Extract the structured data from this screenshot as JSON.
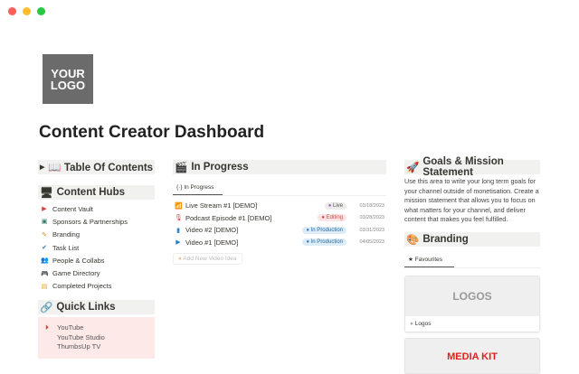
{
  "window": {
    "controls": [
      "#fe5f57",
      "#febc2e",
      "#28c840"
    ]
  },
  "logo": {
    "text": "YOUR LOGO"
  },
  "title": "Content Creator Dashboard",
  "toc": {
    "title": "📖 Table Of Contents"
  },
  "hubs": {
    "title": "Content Hubs",
    "items": [
      {
        "label": "Content Vault",
        "icon": "▶",
        "color": "#e03e3e"
      },
      {
        "label": "Sponsors & Partnerships",
        "icon": "▣",
        "color": "#2e7d6a"
      },
      {
        "label": "Branding",
        "icon": "✎",
        "color": "#e8871e"
      },
      {
        "label": "Task List",
        "icon": "✔",
        "color": "#2f80c4"
      },
      {
        "label": "People & Collabs",
        "icon": "👥",
        "color": "#d63a8a"
      },
      {
        "label": "Game Directory",
        "icon": "🎮",
        "color": "#7b4cb0"
      },
      {
        "label": "Completed Projects",
        "icon": "▤",
        "color": "#e8a31e"
      }
    ]
  },
  "quick_links": {
    "title": "Quick Links",
    "links": [
      "YouTube",
      "YouTube Studio",
      "ThumbsUp TV"
    ]
  },
  "in_progress": {
    "title": "In Progress",
    "tab": "In Progress",
    "rows": [
      {
        "name": "Live Stream #1 [DEMO]",
        "icon": "📶",
        "status": "Live",
        "bg": "#ebebea",
        "fg": "#555",
        "dot": "#9065b0",
        "date": "03/18/2023"
      },
      {
        "name": "Podcast Episode #1 [DEMO]",
        "icon": "🎙",
        "status": "Editing",
        "bg": "#fde4e4",
        "fg": "#c4554d",
        "dot": "#e03e3e",
        "date": "03/28/2023"
      },
      {
        "name": "Video #2 [DEMO]",
        "icon": "▮",
        "status": "In Production",
        "bg": "#dcecf7",
        "fg": "#2b6a9e",
        "dot": "#2f80c4",
        "date": "03/31/2023"
      },
      {
        "name": "Video #1 [DEMO]",
        "icon": "▶",
        "status": "In Production",
        "bg": "#dcecf7",
        "fg": "#2b6a9e",
        "dot": "#2f80c4",
        "date": "04/05/2023"
      }
    ],
    "add_label": "Add New Video Idea"
  },
  "goals": {
    "title": "Goals & Mission Statement",
    "text": "Use this area to write your long term goals for your channel outside of monetisation. Create a mission statement that allows you to focus on what matters for your channel, and deliver content that makes you feel fulfilled."
  },
  "branding": {
    "title": "Branding",
    "tab": "Favourites",
    "cards": [
      {
        "cover": "LOGOS",
        "label": "Logos"
      },
      {
        "cover": "MEDIA KIT"
      }
    ]
  }
}
